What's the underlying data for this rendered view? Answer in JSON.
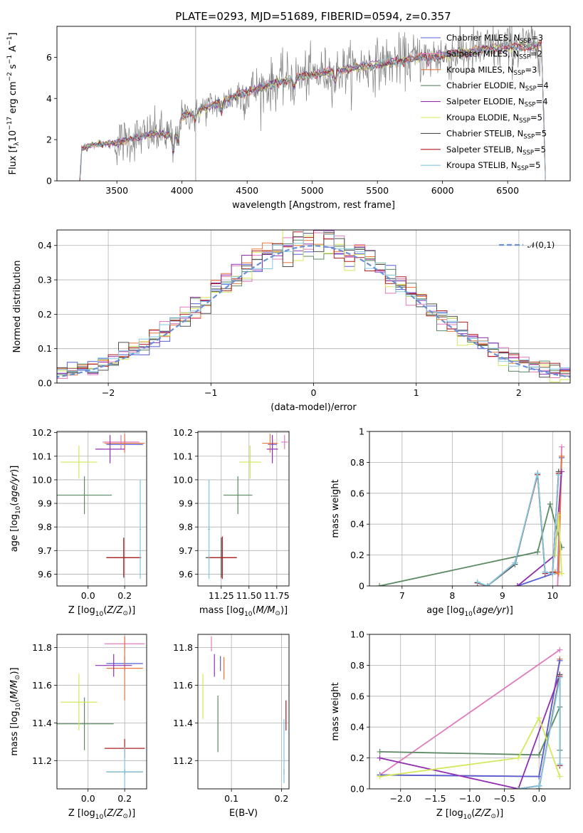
{
  "figure": {
    "title": "PLATE=0293, MJD=51689, FIBERID=0594, z=0.357"
  },
  "models": [
    {
      "name": "Chabrier MILES",
      "nssp": "3",
      "color": "#555fd8"
    },
    {
      "name": "Salpeter MILES",
      "nssp": "2",
      "color": "#e07bbf"
    },
    {
      "name": "Kroupa MILES",
      "nssp": "3",
      "color": "#e8773a"
    },
    {
      "name": "Chabrier ELODIE",
      "nssp": "4",
      "color": "#5b8a63"
    },
    {
      "name": "Salpeter ELODIE",
      "nssp": "4",
      "color": "#9030b0"
    },
    {
      "name": "Kroupa ELODIE",
      "nssp": "5",
      "color": "#d4e85a"
    },
    {
      "name": "Chabrier STELIB",
      "nssp": "5",
      "color": "#505050"
    },
    {
      "name": "Salpeter STELIB",
      "nssp": "5",
      "color": "#b01d1d"
    },
    {
      "name": "Kroupa STELIB",
      "nssp": "5",
      "color": "#80c8e0"
    }
  ],
  "chart_data": [
    {
      "id": "spectrum",
      "type": "line",
      "title": "PLATE=0293, MJD=51689, FIBERID=0594, z=0.357",
      "xlabel": "wavelength [Angstrom, rest frame]",
      "ylabel": "Flux [f_λ 10^-17 erg cm^-2 s^-1 A^-1]",
      "xlim": [
        3040,
        6980
      ],
      "ylim": [
        0,
        7.5
      ],
      "xticks": [
        3500,
        4000,
        4500,
        5000,
        5500,
        6000,
        6500
      ],
      "yticks": [
        0,
        2,
        4,
        6
      ],
      "legend": "upper right",
      "continuum_points": [
        [
          3215,
          0
        ],
        [
          3230,
          1.55
        ],
        [
          3300,
          1.75
        ],
        [
          3500,
          1.85
        ],
        [
          3650,
          2.1
        ],
        [
          3800,
          2.3
        ],
        [
          3930,
          2.2
        ],
        [
          4000,
          3.1
        ],
        [
          4200,
          3.6
        ],
        [
          4400,
          4.1
        ],
        [
          4600,
          4.5
        ],
        [
          4800,
          4.9
        ],
        [
          5000,
          5.15
        ],
        [
          5200,
          5.35
        ],
        [
          5400,
          5.55
        ],
        [
          5600,
          5.75
        ],
        [
          5800,
          5.95
        ],
        [
          6000,
          6.1
        ],
        [
          6200,
          6.25
        ],
        [
          6400,
          6.45
        ],
        [
          6600,
          6.5
        ],
        [
          6760,
          6.6
        ],
        [
          6790,
          0.1
        ]
      ],
      "data_color": "#7f7f7f"
    },
    {
      "id": "residuals",
      "type": "line",
      "xlabel": "(data-model)/error",
      "ylabel": "Normed distribution",
      "xlim": [
        -2.5,
        2.5
      ],
      "ylim": [
        0,
        0.445
      ],
      "xticks": [
        -2,
        -1,
        0,
        1,
        2
      ],
      "yticks": [
        0.0,
        0.1,
        0.2,
        0.3,
        0.4
      ],
      "legend_label": "𝒩(0,1)",
      "legend": "upper right",
      "gaussian": {
        "mean": 0,
        "sigma": 1
      },
      "histogram_bin_width": 0.1
    },
    {
      "id": "age-vs-Z",
      "type": "scatter",
      "xlabel": "Z [log10(Z/Z⊙)]",
      "ylabel": "age [log10(age/yr)]",
      "xlim": [
        -0.17,
        0.32
      ],
      "ylim": [
        9.55,
        10.205
      ],
      "xticks": [
        0.0,
        0.2
      ],
      "yticks": [
        9.6,
        9.7,
        9.8,
        9.9,
        10.0,
        10.1,
        10.2
      ],
      "points": [
        {
          "model": 0,
          "x": 0.2,
          "y": 10.15,
          "xerr": 0.1,
          "yerr": 0.02
        },
        {
          "model": 1,
          "x": 0.18,
          "y": 10.16,
          "xerr": 0.1,
          "yerr": 0.03
        },
        {
          "model": 2,
          "x": 0.2,
          "y": 10.155,
          "xerr": 0.11,
          "yerr": 0.04
        },
        {
          "model": 3,
          "x": -0.02,
          "y": 9.935,
          "xerr": 0.15,
          "yerr": 0.08
        },
        {
          "model": 4,
          "x": 0.12,
          "y": 10.13,
          "xerr": 0.08,
          "yerr": 0.06
        },
        {
          "model": 5,
          "x": -0.05,
          "y": 10.075,
          "xerr": 0.1,
          "yerr": 0.07
        },
        {
          "model": 6,
          "x": 0.195,
          "y": 9.67,
          "xerr": 0.095,
          "yerr": 0.085
        },
        {
          "model": 7,
          "x": 0.195,
          "y": 9.67,
          "xerr": 0.095,
          "yerr": 0.08
        },
        {
          "model": 8,
          "x": 0.285,
          "y": 9.79,
          "xerr": 0.005,
          "yerr": 0.21
        }
      ]
    },
    {
      "id": "age-vs-mass",
      "type": "scatter",
      "xlabel": "mass [log10(M/M⊙)]",
      "ylabel": "",
      "xlim": [
        11.04,
        11.86
      ],
      "ylim": [
        9.55,
        10.205
      ],
      "xticks": [
        11.25,
        11.5,
        11.75
      ],
      "yticks": [
        9.6,
        9.7,
        9.8,
        9.9,
        10.0,
        10.1,
        10.2
      ],
      "points": [
        {
          "model": 0,
          "x": 11.71,
          "y": 10.15,
          "xerr": 0.04,
          "yerr": 0.02
        },
        {
          "model": 1,
          "x": 11.82,
          "y": 10.16,
          "xerr": 0.03,
          "yerr": 0.03
        },
        {
          "model": 2,
          "x": 11.69,
          "y": 10.155,
          "xerr": 0.07,
          "yerr": 0.04
        },
        {
          "model": 3,
          "x": 11.4,
          "y": 9.935,
          "xerr": 0.13,
          "yerr": 0.08
        },
        {
          "model": 4,
          "x": 11.71,
          "y": 10.13,
          "xerr": 0.05,
          "yerr": 0.06
        },
        {
          "model": 5,
          "x": 11.51,
          "y": 10.075,
          "xerr": 0.1,
          "yerr": 0.07
        },
        {
          "model": 6,
          "x": 11.25,
          "y": 9.67,
          "xerr": 0.14,
          "yerr": 0.085
        },
        {
          "model": 7,
          "x": 11.26,
          "y": 9.67,
          "xerr": 0.13,
          "yerr": 0.09
        },
        {
          "model": 8,
          "x": 11.14,
          "y": 9.79,
          "xerr": 0.01,
          "yerr": 0.21
        }
      ]
    },
    {
      "id": "weight-vs-age",
      "type": "line",
      "xlabel": "age [log10(age/yr)]",
      "ylabel": "mass weight",
      "xlim": [
        6.35,
        10.35
      ],
      "ylim": [
        0,
        1.0
      ],
      "xticks": [
        7,
        8,
        9,
        10
      ],
      "yticks": [
        0.0,
        0.2,
        0.4,
        0.6,
        0.8,
        1.0
      ],
      "series": [
        {
          "model": 3,
          "x": [
            6.55,
            9.7,
            9.95,
            10.18
          ],
          "y": [
            0.0,
            0.22,
            0.53,
            0.25
          ]
        },
        {
          "model": 0,
          "x": [
            9.3,
            10.1,
            10.18
          ],
          "y": [
            0.0,
            0.09,
            0.83
          ]
        },
        {
          "model": 1,
          "x": [
            10.1,
            10.18
          ],
          "y": [
            0.0,
            0.9
          ]
        },
        {
          "model": 2,
          "x": [
            10.05,
            10.12,
            10.18
          ],
          "y": [
            0.09,
            0.08,
            0.84
          ]
        },
        {
          "model": 4,
          "x": [
            9.3,
            10.05,
            10.18
          ],
          "y": [
            0.0,
            0.2,
            0.74
          ]
        },
        {
          "model": 5,
          "x": [
            10.05,
            10.12,
            10.18
          ],
          "y": [
            0.2,
            0.46,
            0.08
          ]
        },
        {
          "model": 6,
          "x": [
            8.5,
            8.7,
            9.25,
            9.7,
            9.85,
            10.0,
            10.12
          ],
          "y": [
            0.02,
            0.0,
            0.14,
            0.73,
            0.09,
            0.08,
            0.74
          ]
        },
        {
          "model": 7,
          "x": [
            8.5,
            8.7,
            9.25,
            9.7,
            9.85,
            10.0,
            10.12
          ],
          "y": [
            0.02,
            0.0,
            0.15,
            0.72,
            0.08,
            0.09,
            0.73
          ]
        },
        {
          "model": 8,
          "x": [
            8.5,
            8.7,
            9.25,
            9.7,
            9.85,
            10.0,
            10.12
          ],
          "y": [
            0.025,
            0.0,
            0.15,
            0.73,
            0.09,
            0.08,
            0.72
          ]
        }
      ]
    },
    {
      "id": "mass-vs-Z",
      "type": "scatter",
      "xlabel": "Z [log10(Z/Z⊙)]",
      "ylabel": "mass [log10(M/M⊙)]",
      "xlim": [
        -0.17,
        0.32
      ],
      "ylim": [
        11.05,
        11.87
      ],
      "xticks": [
        0.0,
        0.2
      ],
      "yticks": [
        11.2,
        11.4,
        11.6,
        11.8
      ],
      "points": [
        {
          "model": 0,
          "x": 0.2,
          "y": 11.715,
          "xerr": 0.1,
          "yerr": 0.04
        },
        {
          "model": 1,
          "x": 0.2,
          "y": 11.82,
          "xerr": 0.11,
          "yerr": 0.04
        },
        {
          "model": 2,
          "x": 0.2,
          "y": 11.69,
          "xerr": 0.1,
          "yerr": 0.17
        },
        {
          "model": 3,
          "x": -0.02,
          "y": 11.395,
          "xerr": 0.16,
          "yerr": 0.14
        },
        {
          "model": 4,
          "x": 0.14,
          "y": 11.705,
          "xerr": 0.1,
          "yerr": 0.06
        },
        {
          "model": 5,
          "x": -0.05,
          "y": 11.51,
          "xerr": 0.1,
          "yerr": 0.15
        },
        {
          "model": 6,
          "x": 0.2,
          "y": 11.14,
          "xerr": 0.1,
          "yerr": 0.015
        },
        {
          "model": 7,
          "x": 0.2,
          "y": 11.265,
          "xerr": 0.11,
          "yerr": 0.05
        },
        {
          "model": 8,
          "x": 0.2,
          "y": 11.14,
          "xerr": 0.1,
          "yerr": 0.13
        }
      ]
    },
    {
      "id": "mass-vs-ebv",
      "type": "scatter",
      "xlabel": "E(B-V)",
      "ylabel": "",
      "xlim": [
        0.033,
        0.215
      ],
      "ylim": [
        11.05,
        11.87
      ],
      "xticks": [
        0.1,
        0.2
      ],
      "yticks": [
        11.2,
        11.4,
        11.6,
        11.8
      ],
      "points": [
        {
          "model": 0,
          "x": 0.078,
          "y": 11.715,
          "yerr": 0.04
        },
        {
          "model": 1,
          "x": 0.06,
          "y": 11.82,
          "yerr": 0.04
        },
        {
          "model": 2,
          "x": 0.085,
          "y": 11.69,
          "yerr": 0.06
        },
        {
          "model": 3,
          "x": 0.073,
          "y": 11.395,
          "yerr": 0.15
        },
        {
          "model": 4,
          "x": 0.066,
          "y": 11.705,
          "yerr": 0.06
        },
        {
          "model": 5,
          "x": 0.043,
          "y": 11.54,
          "yerr": 0.12
        },
        {
          "model": 6,
          "x": 0.205,
          "y": 11.14,
          "yerr": 0.015
        },
        {
          "model": 7,
          "x": 0.209,
          "y": 11.44,
          "yerr": 0.08
        },
        {
          "model": 8,
          "x": 0.205,
          "y": 11.25,
          "yerr": 0.17
        }
      ]
    },
    {
      "id": "weight-vs-Z",
      "type": "line",
      "xlabel": "Z [log10(Z/Z⊙)]",
      "ylabel": "mass weight",
      "xlim": [
        -2.45,
        0.45
      ],
      "ylim": [
        0,
        1.0
      ],
      "xticks": [
        -2.0,
        -1.5,
        -1.0,
        -0.5,
        0.0
      ],
      "yticks": [
        0.0,
        0.2,
        0.4,
        0.6,
        0.8,
        1.0
      ],
      "series": [
        {
          "model": 1,
          "x": [
            -2.3,
            0.3
          ],
          "y": [
            0.09,
            0.9
          ]
        },
        {
          "model": 2,
          "x": [
            -2.3,
            0.0,
            0.3
          ],
          "y": [
            0.09,
            0.08,
            0.84
          ]
        },
        {
          "model": 0,
          "x": [
            -2.3,
            0.0,
            0.3
          ],
          "y": [
            0.09,
            0.08,
            0.83
          ]
        },
        {
          "model": 3,
          "x": [
            -2.3,
            0.0,
            0.3,
            0.3
          ],
          "y": [
            0.24,
            0.22,
            0.53,
            0.25
          ]
        },
        {
          "model": 4,
          "x": [
            -2.3,
            -0.3,
            0.3
          ],
          "y": [
            0.2,
            0.0,
            0.74
          ]
        },
        {
          "model": 5,
          "x": [
            -2.3,
            -0.3,
            0.0,
            0.3
          ],
          "y": [
            0.08,
            0.2,
            0.46,
            0.08
          ]
        },
        {
          "model": 6,
          "x": [
            -0.3,
            0.0,
            0.0,
            0.3,
            0.3
          ],
          "y": [
            0.0,
            0.02,
            0.0,
            0.74,
            0.15
          ]
        },
        {
          "model": 7,
          "x": [
            -0.3,
            0.0,
            0.0,
            0.3,
            0.3
          ],
          "y": [
            0.0,
            0.02,
            0.0,
            0.73,
            0.15
          ]
        },
        {
          "model": 8,
          "x": [
            -0.3,
            0.0,
            0.0,
            0.3,
            0.3
          ],
          "y": [
            0.0,
            0.02,
            0.0,
            0.72,
            0.16
          ]
        }
      ]
    }
  ]
}
